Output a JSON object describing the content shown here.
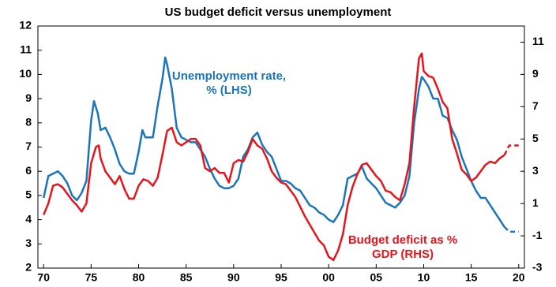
{
  "chart_data": {
    "type": "line",
    "title": "US budget deficit versus unemployment",
    "xlim": [
      1969.4,
      2020.6
    ],
    "xticks": [
      {
        "value": 1970,
        "label": "70"
      },
      {
        "value": 1975,
        "label": "75"
      },
      {
        "value": 1980,
        "label": "80"
      },
      {
        "value": 1985,
        "label": "85"
      },
      {
        "value": 1990,
        "label": "90"
      },
      {
        "value": 1995,
        "label": "95"
      },
      {
        "value": 2000,
        "label": "00"
      },
      {
        "value": 2005,
        "label": "05"
      },
      {
        "value": 2010,
        "label": "10"
      },
      {
        "value": 2015,
        "label": "15"
      },
      {
        "value": 2020,
        "label": "20"
      }
    ],
    "ylim": [
      2,
      12
    ],
    "yticks": [
      2,
      3,
      4,
      5,
      6,
      7,
      8,
      9,
      10,
      11,
      12
    ],
    "y2lim": [
      -3,
      12
    ],
    "y2ticks": [
      -3,
      -1,
      1,
      3,
      5,
      7,
      9,
      11
    ],
    "series": [
      {
        "name": "Unemployment rate, % (LHS)",
        "color": "#1a75bc",
        "axis": "y",
        "dashed_from": 2018.5,
        "x": [
          1970,
          1970.5,
          1971,
          1971.5,
          1972,
          1972.5,
          1973,
          1973.5,
          1974,
          1974.5,
          1975,
          1975.3,
          1975.7,
          1976,
          1976.5,
          1977,
          1977.5,
          1978,
          1978.5,
          1979,
          1979.5,
          1980,
          1980.4,
          1980.7,
          1981,
          1981.5,
          1982,
          1982.5,
          1982.8,
          1983,
          1983.5,
          1984,
          1984.5,
          1985,
          1985.5,
          1986,
          1986.5,
          1987,
          1987.5,
          1988,
          1988.5,
          1989,
          1989.5,
          1990,
          1990.5,
          1991,
          1991.5,
          1992,
          1992.5,
          1993,
          1993.5,
          1994,
          1994.5,
          1995,
          1995.5,
          1996,
          1996.5,
          1997,
          1997.5,
          1998,
          1998.5,
          1999,
          1999.5,
          2000,
          2000.5,
          2001,
          2001.5,
          2002,
          2002.5,
          2003,
          2003.5,
          2004,
          2004.5,
          2005,
          2005.5,
          2006,
          2006.5,
          2007,
          2007.5,
          2008,
          2008.5,
          2009,
          2009.5,
          2009.8,
          2010,
          2010.5,
          2011,
          2011.5,
          2012,
          2012.5,
          2013,
          2013.5,
          2014,
          2014.5,
          2015,
          2015.5,
          2016,
          2016.5,
          2017,
          2017.5,
          2018,
          2018.5,
          2019,
          2020
        ],
        "values": [
          4.9,
          5.8,
          5.9,
          6.0,
          5.8,
          5.5,
          5.0,
          4.8,
          5.1,
          5.6,
          8.1,
          8.9,
          8.4,
          7.7,
          7.8,
          7.4,
          6.9,
          6.3,
          6.0,
          5.9,
          5.9,
          6.8,
          7.7,
          7.4,
          7.4,
          7.4,
          8.7,
          9.8,
          10.7,
          10.4,
          9.4,
          7.8,
          7.4,
          7.3,
          7.2,
          7.2,
          6.9,
          6.6,
          6.1,
          5.7,
          5.4,
          5.3,
          5.3,
          5.4,
          5.7,
          6.6,
          6.9,
          7.4,
          7.6,
          7.1,
          6.8,
          6.6,
          6.1,
          5.6,
          5.6,
          5.5,
          5.3,
          5.2,
          4.9,
          4.6,
          4.5,
          4.3,
          4.2,
          4.0,
          3.9,
          4.2,
          4.6,
          5.7,
          5.8,
          5.9,
          6.2,
          5.7,
          5.5,
          5.3,
          5.0,
          4.7,
          4.6,
          4.5,
          4.7,
          5.0,
          5.8,
          8.0,
          9.4,
          9.9,
          9.8,
          9.5,
          9.0,
          9.0,
          8.3,
          8.2,
          7.7,
          7.3,
          6.6,
          6.1,
          5.6,
          5.2,
          4.9,
          4.9,
          4.6,
          4.3,
          4.0,
          3.7,
          3.5,
          3.5
        ]
      },
      {
        "name": "Budget deficit as % GDP (RHS)",
        "color": "#e8141c",
        "axis": "y2",
        "dashed_from": 2018.5,
        "x": [
          1970,
          1970.5,
          1971,
          1971.5,
          1972,
          1972.5,
          1973,
          1973.5,
          1974,
          1974.5,
          1975,
          1975.5,
          1975.8,
          1976,
          1976.5,
          1977,
          1977.5,
          1978,
          1978.5,
          1979,
          1979.5,
          1980,
          1980.5,
          1981,
          1981.5,
          1982,
          1982.5,
          1983,
          1983.5,
          1984,
          1984.5,
          1985,
          1985.5,
          1986,
          1986.5,
          1987,
          1987.5,
          1988,
          1988.5,
          1989,
          1989.5,
          1990,
          1990.5,
          1991,
          1991.5,
          1992,
          1992.5,
          1993,
          1993.5,
          1994,
          1994.5,
          1995,
          1995.5,
          1996,
          1996.5,
          1997,
          1997.5,
          1998,
          1998.5,
          1999,
          1999.5,
          2000,
          2000.5,
          2001,
          2001.5,
          2002,
          2002.5,
          2003,
          2003.5,
          2004,
          2004.5,
          2005,
          2005.5,
          2006,
          2006.5,
          2007,
          2007.5,
          2008,
          2008.5,
          2009,
          2009.5,
          2009.8,
          2010,
          2010.5,
          2011,
          2011.5,
          2012,
          2012.5,
          2013,
          2013.5,
          2014,
          2014.5,
          2015,
          2015.5,
          2016,
          2016.5,
          2017,
          2017.5,
          2018,
          2018.5,
          2019,
          2020
        ],
        "values": [
          0.3,
          1.0,
          2.1,
          2.2,
          2.0,
          1.6,
          1.2,
          0.9,
          0.5,
          1.0,
          3.5,
          4.5,
          4.6,
          3.8,
          3.0,
          2.6,
          2.2,
          2.7,
          1.9,
          1.3,
          1.3,
          2.1,
          2.5,
          2.4,
          2.1,
          2.6,
          4.0,
          5.5,
          5.7,
          4.8,
          4.6,
          4.8,
          5.0,
          5.0,
          4.6,
          3.2,
          3.0,
          3.2,
          2.9,
          2.9,
          2.3,
          3.5,
          3.7,
          3.6,
          4.2,
          5.0,
          4.6,
          4.4,
          3.8,
          3.0,
          2.6,
          2.3,
          2.2,
          1.8,
          1.4,
          0.8,
          0.2,
          -0.3,
          -0.8,
          -1.3,
          -1.6,
          -2.3,
          -2.5,
          -1.9,
          -0.9,
          0.9,
          2.0,
          2.8,
          3.4,
          3.5,
          3.1,
          2.7,
          2.4,
          1.8,
          1.7,
          1.4,
          1.2,
          2.2,
          3.5,
          7.0,
          10.0,
          10.3,
          9.2,
          8.9,
          8.8,
          8.1,
          7.3,
          6.9,
          5.0,
          4.1,
          3.1,
          2.8,
          2.4,
          2.6,
          3.0,
          3.4,
          3.6,
          3.5,
          3.8,
          4.0,
          4.6,
          4.6
        ]
      }
    ]
  }
}
